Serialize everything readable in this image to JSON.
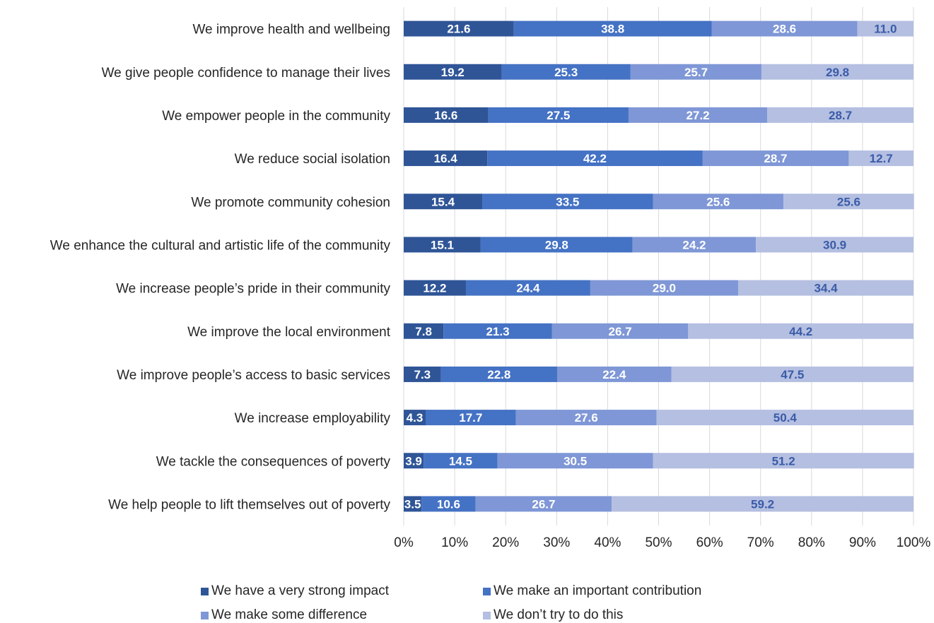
{
  "chart_data": {
    "type": "bar",
    "orientation": "horizontal",
    "stacked": "percent",
    "categories": [
      "We improve health and wellbeing",
      "We give people confidence to manage their lives",
      "We empower people in the community",
      "We reduce social isolation",
      "We promote community cohesion",
      "We enhance the cultural and artistic life of the community",
      "We increase people’s pride in their community",
      "We improve the local environment",
      "We improve people’s access to basic services",
      "We increase employability",
      "We tackle the consequences of poverty",
      "We help people to lift themselves out of poverty"
    ],
    "series": [
      {
        "name": "We have a very strong impact",
        "color": "#2f5597",
        "values": [
          21.6,
          19.2,
          16.6,
          16.4,
          15.4,
          15.1,
          12.2,
          7.8,
          7.3,
          4.3,
          3.9,
          3.5
        ],
        "labels": [
          "21.6",
          "19.2",
          "16.6",
          "16.4",
          "15.4",
          "15.1",
          "12.2",
          "7.8",
          "7.3",
          "4.3",
          "3.9",
          "3.5"
        ]
      },
      {
        "name": "We make an important contribution",
        "color": "#4472c4",
        "values": [
          38.8,
          25.3,
          27.5,
          42.2,
          33.5,
          29.8,
          24.4,
          21.3,
          22.8,
          17.7,
          14.5,
          10.6
        ],
        "labels": [
          "38.8",
          "25.3",
          "27.5",
          "42.2",
          "33.5",
          "29.8",
          "24.4",
          "21.3",
          "22.8",
          "17.7",
          "14.5",
          "10.6"
        ]
      },
      {
        "name": "We make some difference",
        "color": "#7f97d6",
        "values": [
          28.6,
          25.7,
          27.2,
          28.7,
          25.6,
          24.2,
          29.0,
          26.7,
          22.4,
          27.6,
          30.5,
          26.7
        ],
        "labels": [
          "28.6",
          "25.7",
          "27.2",
          "28.7",
          "25.6",
          "24.2",
          "29.0",
          "26.7",
          "22.4",
          "27.6",
          "30.5",
          "26.7"
        ]
      },
      {
        "name": "We don’t try to do this",
        "color": "#b4bfe1",
        "values": [
          11.0,
          29.8,
          28.7,
          12.7,
          25.6,
          30.9,
          34.4,
          44.2,
          47.5,
          50.4,
          51.2,
          59.2
        ],
        "labels": [
          "11.0",
          "29.8",
          "28.7",
          "12.7",
          "25.6",
          "30.9",
          "34.4",
          "44.2",
          "47.5",
          "50.4",
          "51.2",
          "59.2"
        ]
      }
    ],
    "x_ticks": [
      "0%",
      "10%",
      "20%",
      "30%",
      "40%",
      "50%",
      "60%",
      "70%",
      "80%",
      "90%",
      "100%"
    ],
    "xlim": [
      0,
      100
    ],
    "grid": true,
    "legend_position": "bottom",
    "colors": {
      "grid": "#d9d9d9",
      "text": "#262626",
      "label_light": "#ffffff",
      "label_dark": "#3a5ba8"
    }
  }
}
